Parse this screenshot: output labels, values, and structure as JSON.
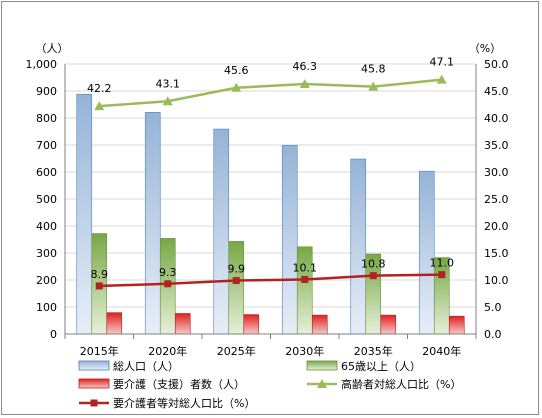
{
  "chart_data": {
    "type": "bar",
    "categories": [
      "2015年",
      "2020年",
      "2025年",
      "2030年",
      "2035年",
      "2040年"
    ],
    "left_axis": {
      "unit_label": "（人）",
      "min": 0,
      "max": 1000,
      "step": 100,
      "tick_labels": [
        "0",
        "100",
        "200",
        "300",
        "400",
        "500",
        "600",
        "700",
        "800",
        "900",
        "1,000"
      ]
    },
    "right_axis": {
      "unit_label": "（%）",
      "min": 0,
      "max": 50,
      "step": 5,
      "tick_labels": [
        "0.0",
        "5.0",
        "10.0",
        "15.0",
        "20.0",
        "25.0",
        "30.0",
        "35.0",
        "40.0",
        "45.0",
        "50.0"
      ]
    },
    "grid": true,
    "legend_position": "bottom",
    "series": [
      {
        "name": "総人口（人）",
        "kind": "bar",
        "axis": "left",
        "color": "#4f81bd",
        "values": [
          888,
          821,
          759,
          699,
          648,
          603
        ]
      },
      {
        "name": "65歳以上（人）",
        "kind": "bar",
        "axis": "left",
        "color": "#9bbb59",
        "values": [
          372,
          354,
          343,
          323,
          296,
          283
        ]
      },
      {
        "name": "要介護（支援）者数（人）",
        "kind": "bar",
        "axis": "left",
        "color": "#c0504d",
        "values": [
          79,
          76,
          72,
          70,
          70,
          66
        ]
      },
      {
        "name": "高齢者対総人口比（%）",
        "kind": "line",
        "axis": "right",
        "color": "#9bbb59",
        "marker": "triangle",
        "values": [
          42.2,
          43.1,
          45.6,
          46.3,
          45.8,
          47.1
        ],
        "labels": [
          "42.2",
          "43.1",
          "45.6",
          "46.3",
          "45.8",
          "47.1"
        ]
      },
      {
        "name": "要介護者等対総人口比（%）",
        "kind": "line",
        "axis": "right",
        "color": "#b22222",
        "marker": "square",
        "values": [
          8.9,
          9.3,
          9.9,
          10.1,
          10.8,
          11.0
        ],
        "labels": [
          "8.9",
          "9.3",
          "9.9",
          "10.1",
          "10.8",
          "11.0"
        ]
      }
    ]
  }
}
